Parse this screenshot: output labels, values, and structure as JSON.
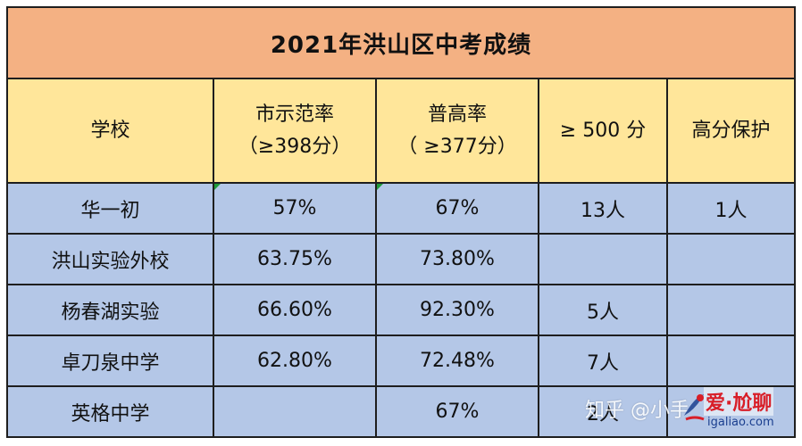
{
  "title": "2021年洪山区中考成绩",
  "headers": {
    "school": "学校",
    "city_rate": "市示范率",
    "city_rate_sub": "（≥398分）",
    "general_rate": "普高率",
    "general_rate_sub": "（ ≥377分）",
    "over500": "≥ 500 分",
    "protect": "高分保护"
  },
  "rows": [
    {
      "school": "华一初",
      "city_rate": "57%",
      "general_rate": "67%",
      "over500": "13人",
      "protect": "1人"
    },
    {
      "school": "洪山实验外校",
      "city_rate": "63.75%",
      "general_rate": "73.80%",
      "over500": "",
      "protect": ""
    },
    {
      "school": "杨春湖实验",
      "city_rate": "66.60%",
      "general_rate": "92.30%",
      "over500": "5人",
      "protect": ""
    },
    {
      "school": "卓刀泉中学",
      "city_rate": "62.80%",
      "general_rate": "72.48%",
      "over500": "7人",
      "protect": ""
    },
    {
      "school": "英格中学",
      "city_rate": "",
      "general_rate": "67%",
      "over500": "2人",
      "protect": ""
    }
  ],
  "watermark": {
    "zhihu": "知乎 @小手",
    "brand": "爱·尬聊",
    "site": "igaliao.com"
  },
  "colors": {
    "title_bg": "#f4b183",
    "header_bg": "#ffe69a",
    "row_bg": "#b4c7e7"
  }
}
